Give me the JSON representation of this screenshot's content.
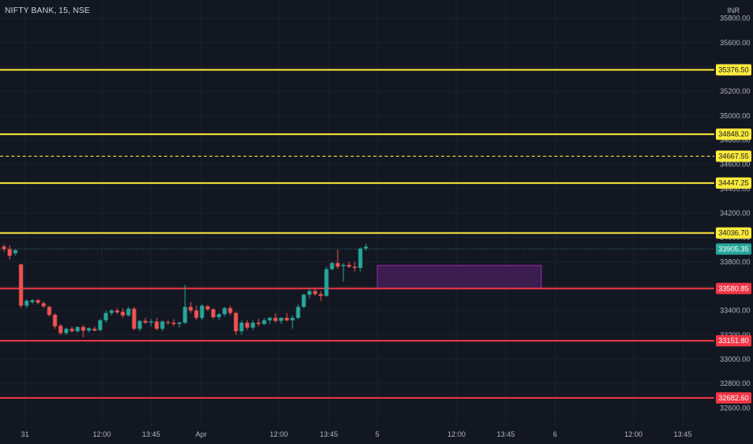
{
  "header": {
    "symbol_label": "NIFTY BANK, 15, NSE",
    "currency": "INR"
  },
  "colors": {
    "background": "#131722",
    "bull": "#26a69a",
    "bear": "#ef5350",
    "resistance": "#ffeb3b",
    "support": "#f23645",
    "zone_fill": "#3b1d4f",
    "zone_border": "#9c27b0",
    "price_tag": "#26a69a"
  },
  "chart_data": {
    "type": "candlestick",
    "ylim": [
      32450,
      35950
    ],
    "y_ticks": [
      32600,
      32800,
      33000,
      33200,
      33400,
      33600,
      33800,
      34000,
      34200,
      34400,
      34600,
      34800,
      35000,
      35200,
      35400,
      35600,
      35800
    ],
    "y_tick_labels": [
      "32600.00",
      "32800.00",
      "33000.00",
      "33200.00",
      "33400.00",
      "33600.00",
      "33800.00",
      "34000.00",
      "34200.00",
      "34400.00",
      "34600.00",
      "34800.00",
      "35000.00",
      "35200.00",
      "35400.00",
      "35600.00",
      "35800.00"
    ],
    "x_labels": [
      "31",
      "12:00",
      "13:45",
      "Apr",
      "12:00",
      "13:45",
      "5",
      "12:00",
      "13:45",
      "6",
      "12:00",
      "13:45"
    ],
    "horizontal_levels": [
      {
        "price": 35376.5,
        "label": "35376.50",
        "kind": "resistance",
        "style": "solid"
      },
      {
        "price": 34848.2,
        "label": "34848.20",
        "kind": "resistance",
        "style": "solid"
      },
      {
        "price": 34667.55,
        "label": "34667.55",
        "kind": "resistance",
        "style": "dashed"
      },
      {
        "price": 34447.25,
        "label": "34447.25",
        "kind": "resistance",
        "style": "solid"
      },
      {
        "price": 34036.7,
        "label": "34036.70",
        "kind": "resistance",
        "style": "solid"
      },
      {
        "price": 33580.85,
        "label": "33580.85",
        "kind": "support",
        "style": "solid"
      },
      {
        "price": 33151.8,
        "label": "33151.80",
        "kind": "support",
        "style": "solid"
      },
      {
        "price": 32682.6,
        "label": "32682.60",
        "kind": "support",
        "style": "solid"
      }
    ],
    "current_price": {
      "price": 33905.35,
      "label": "33905.35"
    },
    "zone": {
      "x_from_index": 66.0,
      "x_to_index": 95.0,
      "price_top": 33770,
      "price_bottom": 33580.85
    },
    "candles": [
      [
        33925,
        33945,
        33880,
        33905
      ],
      [
        33905,
        33935,
        33820,
        33850
      ],
      [
        33870,
        33905,
        33850,
        33895
      ],
      [
        33780,
        33780,
        33420,
        33440
      ],
      [
        33440,
        33490,
        33420,
        33480
      ],
      [
        33470,
        33495,
        33455,
        33485
      ],
      [
        33485,
        33495,
        33450,
        33465
      ],
      [
        33460,
        33475,
        33420,
        33435
      ],
      [
        33430,
        33440,
        33350,
        33365
      ],
      [
        33365,
        33380,
        33250,
        33270
      ],
      [
        33275,
        33290,
        33200,
        33215
      ],
      [
        33215,
        33260,
        33200,
        33250
      ],
      [
        33250,
        33270,
        33220,
        33230
      ],
      [
        33230,
        33270,
        33220,
        33265
      ],
      [
        33265,
        33280,
        33180,
        33235
      ],
      [
        33235,
        33260,
        33220,
        33255
      ],
      [
        33250,
        33270,
        33230,
        33235
      ],
      [
        33240,
        33330,
        33230,
        33320
      ],
      [
        33320,
        33400,
        33300,
        33380
      ],
      [
        33380,
        33410,
        33360,
        33400
      ],
      [
        33400,
        33420,
        33370,
        33385
      ],
      [
        33390,
        33420,
        33340,
        33360
      ],
      [
        33360,
        33430,
        33350,
        33415
      ],
      [
        33415,
        33430,
        33240,
        33250
      ],
      [
        33250,
        33320,
        33230,
        33315
      ],
      [
        33315,
        33340,
        33290,
        33300
      ],
      [
        33300,
        33330,
        33270,
        33310
      ],
      [
        33310,
        33340,
        33240,
        33250
      ],
      [
        33250,
        33320,
        33230,
        33310
      ],
      [
        33305,
        33320,
        33280,
        33300
      ],
      [
        33300,
        33330,
        33270,
        33290
      ],
      [
        33290,
        33310,
        33260,
        33300
      ],
      [
        33300,
        33610,
        33290,
        33430
      ],
      [
        33430,
        33470,
        33380,
        33400
      ],
      [
        33400,
        33440,
        33320,
        33340
      ],
      [
        33340,
        33450,
        33320,
        33440
      ],
      [
        33435,
        33445,
        33395,
        33410
      ],
      [
        33410,
        33420,
        33330,
        33345
      ],
      [
        33345,
        33380,
        33320,
        33370
      ],
      [
        33370,
        33430,
        33350,
        33420
      ],
      [
        33420,
        33440,
        33360,
        33380
      ],
      [
        33380,
        33390,
        33200,
        33230
      ],
      [
        33230,
        33320,
        33200,
        33300
      ],
      [
        33300,
        33320,
        33240,
        33260
      ],
      [
        33260,
        33320,
        33240,
        33300
      ],
      [
        33300,
        33330,
        33270,
        33290
      ],
      [
        33290,
        33340,
        33280,
        33320
      ],
      [
        33320,
        33350,
        33290,
        33340
      ],
      [
        33340,
        33380,
        33300,
        33315
      ],
      [
        33315,
        33345,
        33290,
        33340
      ],
      [
        33340,
        33380,
        33310,
        33320
      ],
      [
        33320,
        33360,
        33250,
        33340
      ],
      [
        33340,
        33450,
        33330,
        33430
      ],
      [
        33430,
        33540,
        33420,
        33530
      ],
      [
        33530,
        33580,
        33500,
        33560
      ],
      [
        33560,
        33590,
        33520,
        33535
      ],
      [
        33535,
        33560,
        33480,
        33520
      ],
      [
        33520,
        33760,
        33515,
        33740
      ],
      [
        33740,
        33800,
        33730,
        33790
      ],
      [
        33790,
        33900,
        33740,
        33760
      ],
      [
        33765,
        33790,
        33640,
        33775
      ],
      [
        33775,
        33800,
        33750,
        33760
      ],
      [
        33760,
        33800,
        33720,
        33750
      ],
      [
        33750,
        33920,
        33720,
        33910
      ],
      [
        33910,
        33950,
        33890,
        33925
      ]
    ]
  }
}
